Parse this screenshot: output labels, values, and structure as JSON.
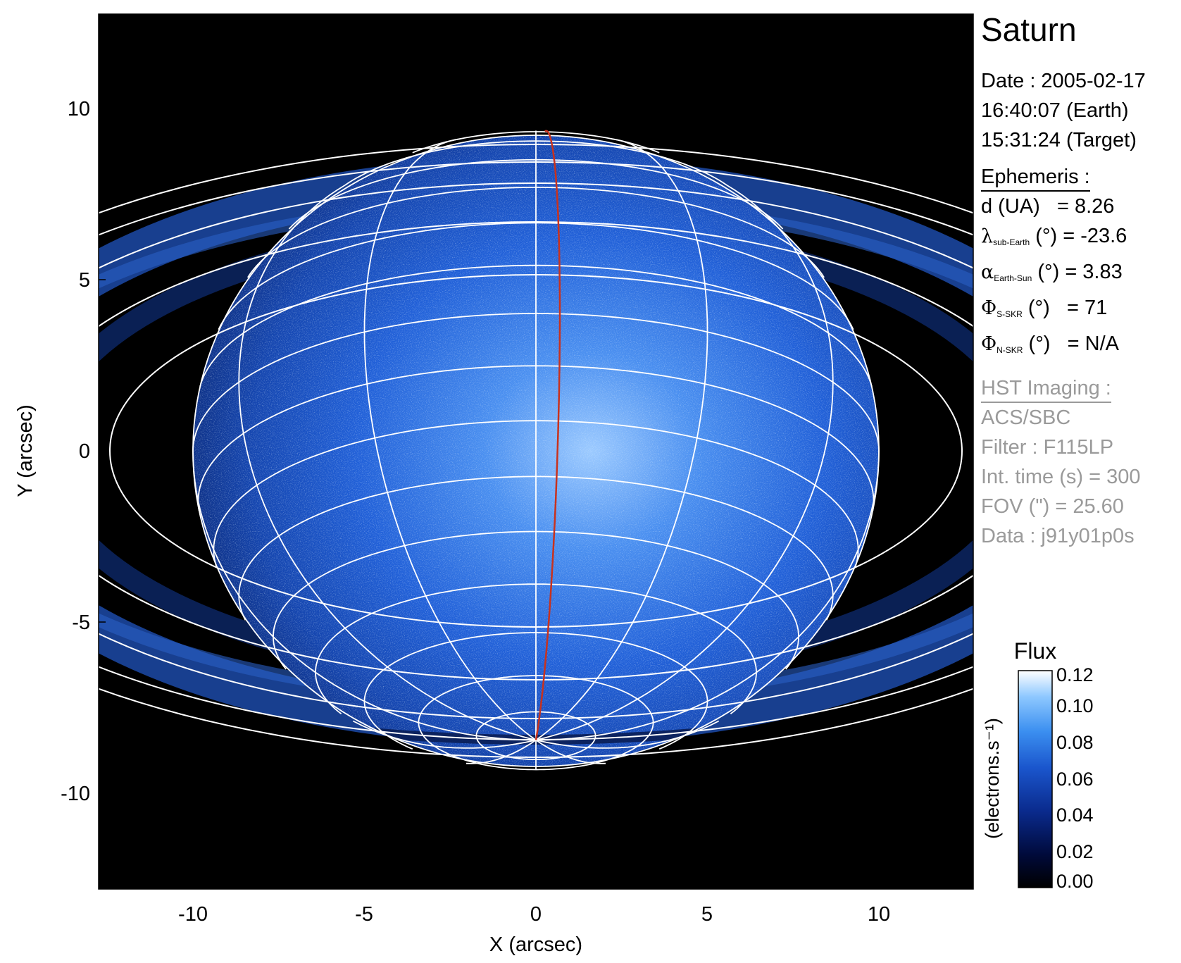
{
  "title": "Saturn",
  "date": {
    "line1": "Date : 2005-02-17",
    "line2": "16:40:07 (Earth)",
    "line3": "15:31:24 (Target)"
  },
  "ephemeris": {
    "heading": "Ephemeris :",
    "d": {
      "label": "d (UA)",
      "value": "= 8.26"
    },
    "lambda": {
      "symbol": "λ",
      "sub": "sub-Earth",
      "unit": "(°)",
      "value": "= -23.6"
    },
    "alpha": {
      "symbol": "α",
      "sub": "Earth-Sun",
      "unit": "(°)",
      "value": "= 3.83"
    },
    "phi_s": {
      "symbol": "Φ",
      "sub": "S-SKR",
      "unit": "(°)",
      "value": "= 71"
    },
    "phi_n": {
      "symbol": "Φ",
      "sub": "N-SKR",
      "unit": "(°)",
      "value": "= N/A"
    }
  },
  "imaging": {
    "heading": "HST Imaging :",
    "instrument": "ACS/SBC",
    "filter": "Filter : F115LP",
    "int_time": "Int. time (s) = 300",
    "fov": "FOV (\") = 25.60",
    "data": "Data : j91y01p0s"
  },
  "axes": {
    "xlabel": "X (arcsec)",
    "ylabel": "Y (arcsec)",
    "xlim": [
      -12.8,
      12.8
    ],
    "ylim": [
      -12.8,
      12.8
    ],
    "xticks": [
      "-10",
      "-5",
      "0",
      "5",
      "10"
    ],
    "yticks": [
      "10",
      "5",
      "0",
      "-5",
      "-10"
    ]
  },
  "colorbar": {
    "title": "Flux",
    "label": "(electrons.s⁻¹)",
    "ticks": [
      "0.12",
      "0.10",
      "0.08",
      "0.06",
      "0.04",
      "0.02",
      "0.00"
    ],
    "colors": [
      "#000000",
      "#000a3a",
      "#0a2a8c",
      "#1a55cc",
      "#3b8ff0",
      "#8ec8ff",
      "#ffffff"
    ]
  },
  "overlay_colors": {
    "grid": "#ffffff",
    "meridian": "#c8321e"
  }
}
